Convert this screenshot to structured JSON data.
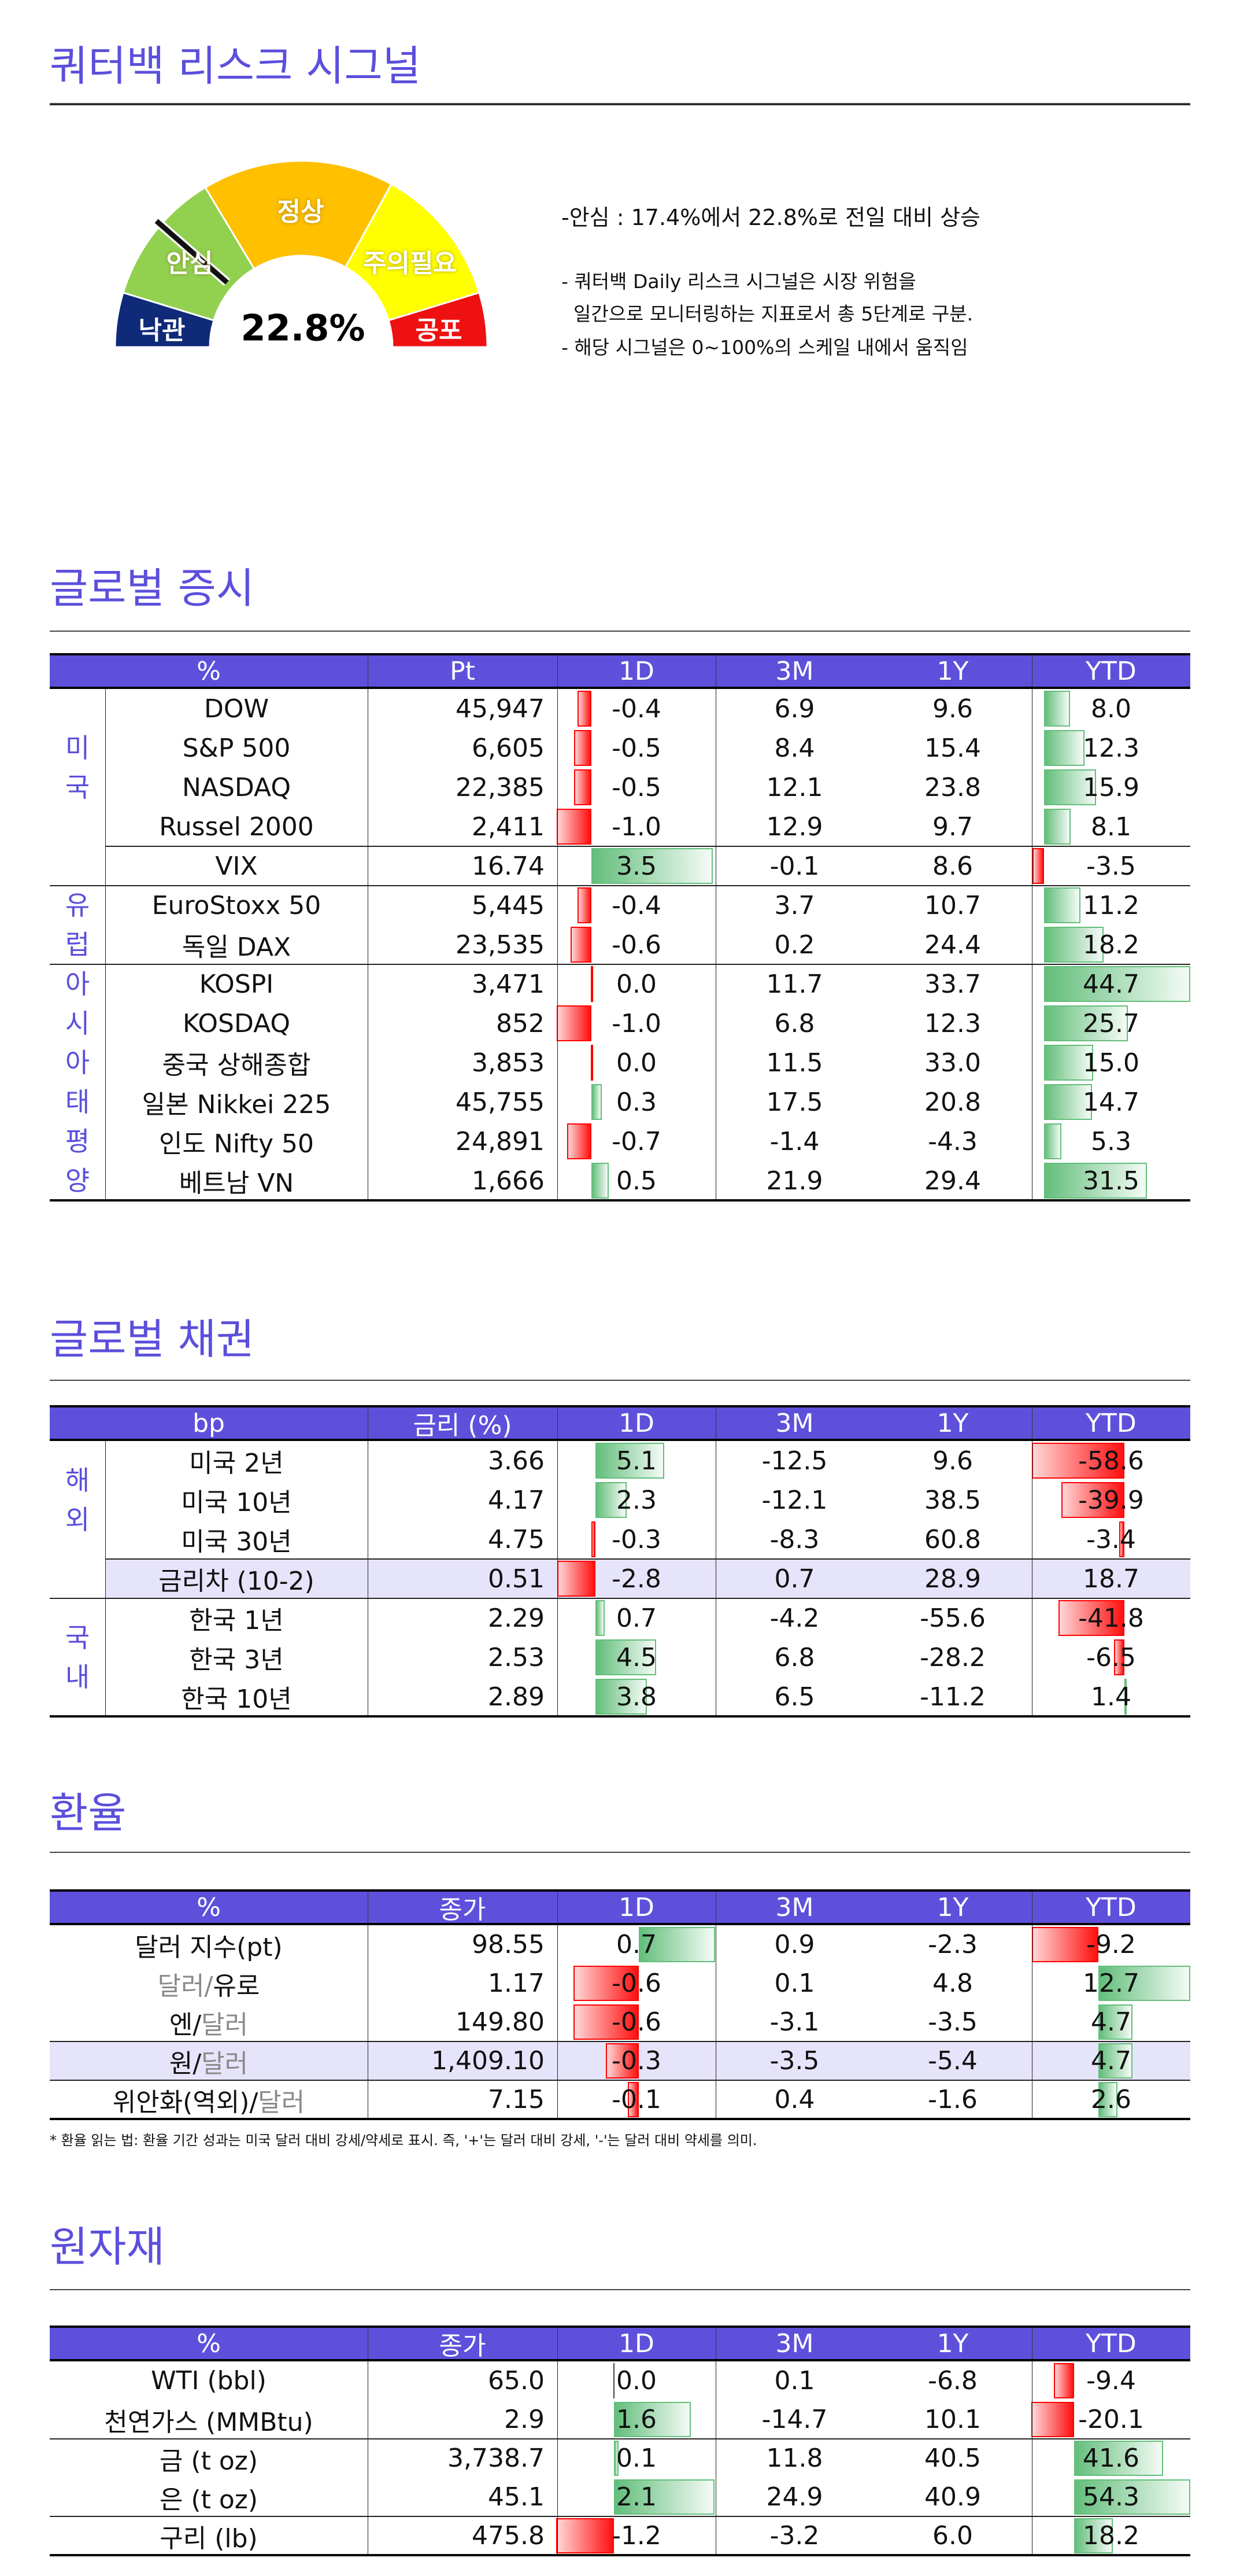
{
  "signal": {
    "title": "쿼터백 리스크 시그널",
    "gauge": {
      "value_percent": 22.8,
      "value_label": "22.8%",
      "segments": [
        {
          "label": "낙관",
          "color": "#0e2a78"
        },
        {
          "label": "안심",
          "color": "#92d050"
        },
        {
          "label": "정상",
          "color": "#ffc000"
        },
        {
          "label": "주의필요",
          "color": "#ffff00"
        },
        {
          "label": "공포",
          "color": "#ee1111"
        }
      ]
    },
    "summary": "-안심 : 17.4%에서 22.8%로 전일 대비 상승",
    "desc_line1": "- 쿼터백 Daily 리스크 시그널은 시장 위험을",
    "desc_line2": "  일간으로 모니터링하는 지표로서 총 5단계로 구분.",
    "desc_line3": "- 해당 시그널은 0~100%의 스케일 내에서 움직임"
  },
  "colors": {
    "accent": "#5b4fdc",
    "header_bg": "#5f50dc",
    "highlight_row": "#e6e4fb",
    "negative": "#ff0000",
    "positive": "#63be7b"
  },
  "equity": {
    "title": "글로벌 증시",
    "headers": [
      "%",
      "Pt",
      "1D",
      "3M",
      "1Y",
      "YTD"
    ],
    "groups": [
      {
        "label": "미국",
        "rows": [
          {
            "name": "DOW",
            "value": "45,947",
            "d1": -0.4,
            "m3": "6.9",
            "y1": "9.6",
            "ytd": 8.0
          },
          {
            "name": "S&P 500",
            "value": "6,605",
            "d1": -0.5,
            "m3": "8.4",
            "y1": "15.4",
            "ytd": 12.3
          },
          {
            "name": "NASDAQ",
            "value": "22,385",
            "d1": -0.5,
            "m3": "12.1",
            "y1": "23.8",
            "ytd": 15.9
          },
          {
            "name": "Russel 2000",
            "value": "2,411",
            "d1": -1.0,
            "m3": "12.9",
            "y1": "9.7",
            "ytd": 8.1
          }
        ]
      },
      {
        "label": "",
        "continued": true,
        "rows": [
          {
            "name": "VIX",
            "value": "16.74",
            "d1": 3.5,
            "m3": "-0.1",
            "y1": "8.6",
            "ytd": -3.5
          }
        ]
      },
      {
        "label": "유럽",
        "rows": [
          {
            "name": "EuroStoxx 50",
            "value": "5,445",
            "d1": -0.4,
            "m3": "3.7",
            "y1": "10.7",
            "ytd": 11.2
          },
          {
            "name": "독일 DAX",
            "value": "23,535",
            "d1": -0.6,
            "m3": "0.2",
            "y1": "24.4",
            "ytd": 18.2
          }
        ]
      },
      {
        "label": "아시아태평양",
        "rows": [
          {
            "name": "KOSPI",
            "value": "3,471",
            "d1": 0.0,
            "m3": "11.7",
            "y1": "33.7",
            "ytd": 44.7
          },
          {
            "name": "KOSDAQ",
            "value": "852",
            "d1": -1.0,
            "m3": "6.8",
            "y1": "12.3",
            "ytd": 25.7
          },
          {
            "name": "중국 상해종합",
            "value": "3,853",
            "d1": 0.0,
            "m3": "11.5",
            "y1": "33.0",
            "ytd": 15.0
          },
          {
            "name": "일본 Nikkei 225",
            "value": "45,755",
            "d1": 0.3,
            "m3": "17.5",
            "y1": "20.8",
            "ytd": 14.7
          },
          {
            "name": "인도 Nifty 50",
            "value": "24,891",
            "d1": -0.7,
            "m3": "-1.4",
            "y1": "-4.3",
            "ytd": 5.3
          },
          {
            "name": "베트남 VN",
            "value": "1,666",
            "d1": 0.5,
            "m3": "21.9",
            "y1": "29.4",
            "ytd": 31.5
          }
        ]
      }
    ]
  },
  "bonds": {
    "title": "글로벌 채권",
    "headers": [
      "bp",
      "금리 (%)",
      "1D",
      "3M",
      "1Y",
      "YTD"
    ],
    "groups": [
      {
        "label": "해외",
        "rows": [
          {
            "name": "미국 2년",
            "value": "3.66",
            "d1": 5.1,
            "m3": "-12.5",
            "y1": "9.6",
            "ytd": -58.6
          },
          {
            "name": "미국 10년",
            "value": "4.17",
            "d1": 2.3,
            "m3": "-12.1",
            "y1": "38.5",
            "ytd": -39.9
          },
          {
            "name": "미국 30년",
            "value": "4.75",
            "d1": -0.3,
            "m3": "-8.3",
            "y1": "60.8",
            "ytd": -3.4
          }
        ]
      },
      {
        "label": "",
        "continued": true,
        "rows": [
          {
            "name": "금리차 (10-2)",
            "value": "0.51",
            "d1": -2.8,
            "m3": "0.7",
            "y1": "28.9",
            "ytd": 18.7,
            "highlight": true,
            "no_ytd_bar": true
          }
        ]
      },
      {
        "label": "국내",
        "rows": [
          {
            "name": "한국 1년",
            "value": "2.29",
            "d1": 0.7,
            "m3": "-4.2",
            "y1": "-55.6",
            "ytd": -41.8
          },
          {
            "name": "한국 3년",
            "value": "2.53",
            "d1": 4.5,
            "m3": "6.8",
            "y1": "-28.2",
            "ytd": -6.5
          },
          {
            "name": "한국 10년",
            "value": "2.89",
            "d1": 3.8,
            "m3": "6.5",
            "y1": "-11.2",
            "ytd": 1.4
          }
        ]
      }
    ]
  },
  "fx": {
    "title": "환율",
    "headers": [
      "%",
      "종가",
      "1D",
      "3M",
      "1Y",
      "YTD"
    ],
    "groups": [
      {
        "label": "",
        "rows": [
          {
            "name_parts": [
              {
                "text": "달러 지수(pt)"
              }
            ],
            "value": "98.55",
            "d1": 0.7,
            "m3": "0.9",
            "y1": "-2.3",
            "ytd": -9.2
          },
          {
            "name_parts": [
              {
                "text": "달러/",
                "muted": true
              },
              {
                "text": "유로"
              }
            ],
            "value": "1.17",
            "d1": -0.6,
            "m3": "0.1",
            "y1": "4.8",
            "ytd": 12.7
          },
          {
            "name_parts": [
              {
                "text": "엔/"
              },
              {
                "text": "달러",
                "muted": true
              }
            ],
            "value": "149.80",
            "d1": -0.6,
            "m3": "-3.1",
            "y1": "-3.5",
            "ytd": 4.7
          }
        ]
      },
      {
        "label": "",
        "rows": [
          {
            "name_parts": [
              {
                "text": "원/"
              },
              {
                "text": "달러",
                "muted": true
              }
            ],
            "value": "1,409.10",
            "d1": -0.3,
            "m3": "-3.5",
            "y1": "-5.4",
            "ytd": 4.7,
            "highlight": true
          }
        ]
      },
      {
        "label": "",
        "rows": [
          {
            "name_parts": [
              {
                "text": "위안화(역외)/"
              },
              {
                "text": "달러",
                "muted": true
              }
            ],
            "value": "7.15",
            "d1": -0.1,
            "m3": "0.4",
            "y1": "-1.6",
            "ytd": 2.6
          }
        ]
      }
    ],
    "footnote": "* 환율 읽는 법: 환율 기간 성과는 미국 달러 대비 강세/약세로 표시. 즉, '+'는 달러 대비 강세, '-'는 달러 대비 약세를 의미."
  },
  "commodities": {
    "title": "원자재",
    "headers": [
      "%",
      "종가",
      "1D",
      "3M",
      "1Y",
      "YTD"
    ],
    "groups": [
      {
        "label": "",
        "rows": [
          {
            "name": "WTI (bbl)",
            "value": "65.0",
            "d1": 0.0,
            "d1_neutral": true,
            "m3": "0.1",
            "y1": "-6.8",
            "ytd": -9.4
          },
          {
            "name": "천연가스 (MMBtu)",
            "value": "2.9",
            "d1": 1.6,
            "m3": "-14.7",
            "y1": "10.1",
            "ytd": -20.1
          }
        ]
      },
      {
        "label": "",
        "rows": [
          {
            "name": "금 (t oz)",
            "value": "3,738.7",
            "d1": 0.1,
            "m3": "11.8",
            "y1": "40.5",
            "ytd": 41.6
          },
          {
            "name": "은 (t oz)",
            "value": "45.1",
            "d1": 2.1,
            "m3": "24.9",
            "y1": "40.9",
            "ytd": 54.3
          }
        ]
      },
      {
        "label": "",
        "rows": [
          {
            "name": "구리 (lb)",
            "value": "475.8",
            "d1": -1.2,
            "m3": "-3.2",
            "y1": "6.0",
            "ytd": 18.2
          }
        ]
      }
    ]
  }
}
